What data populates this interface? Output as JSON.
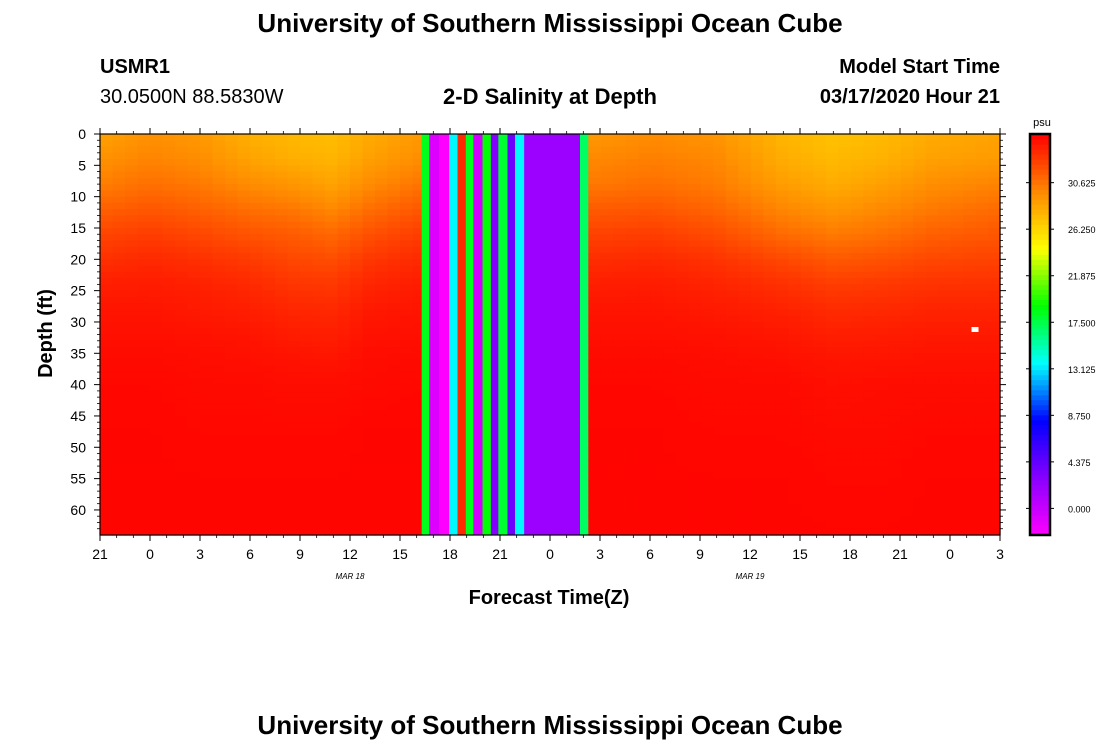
{
  "page": {
    "title_top": "University of Southern Mississippi Ocean Cube",
    "title_bottom": "University of Southern Mississippi Ocean Cube",
    "station_id": "USMR1",
    "station_coords": "30.0500N 88.5830W",
    "plot_title": "2-D Salinity at Depth",
    "model_label": "Model Start Time",
    "model_time": "03/17/2020 Hour 21"
  },
  "chart_data": {
    "type": "heatmap",
    "title": "2-D Salinity at Depth",
    "xlabel": "Forecast Time(Z)",
    "ylabel": "Depth (ft)",
    "x_range_hours": [
      0,
      54
    ],
    "y_range_ft": [
      0,
      64
    ],
    "x_tick_labels": [
      "21",
      "0",
      "3",
      "6",
      "9",
      "12",
      "15",
      "18",
      "21",
      "0",
      "3",
      "6",
      "9",
      "12",
      "15",
      "18",
      "21",
      "0",
      "3"
    ],
    "x_tick_hours": [
      0,
      3,
      6,
      9,
      12,
      15,
      18,
      21,
      24,
      27,
      30,
      33,
      36,
      39,
      42,
      45,
      48,
      51,
      54
    ],
    "date_labels": [
      {
        "text": "MAR 18",
        "hour": 15
      },
      {
        "text": "MAR 19",
        "hour": 39
      }
    ],
    "y_ticks": [
      0,
      5,
      10,
      15,
      20,
      25,
      30,
      35,
      40,
      45,
      50,
      55,
      60
    ],
    "colorbar": {
      "unit": "psu",
      "labels": [
        "30.625",
        "26.250",
        "21.875",
        "17.500",
        "13.125",
        "8.750",
        "4.375",
        "0.000"
      ],
      "label_values": [
        30.625,
        26.25,
        21.875,
        17.5,
        13.125,
        8.75,
        4.375,
        0.0
      ],
      "range": [
        -2.5,
        35.2
      ],
      "colors": [
        "#ff00ff",
        "#8800ff",
        "#0000ff",
        "#00ffff",
        "#00ff00",
        "#ffff00",
        "#ff8800",
        "#ff0000"
      ]
    },
    "profile_columns_hours": [
      0,
      3,
      6,
      9,
      11.5,
      14,
      16,
      19.3
    ],
    "profile_depths_ft": [
      0,
      4,
      8,
      12,
      16,
      20,
      24,
      28,
      32,
      36,
      40,
      48,
      56,
      64
    ],
    "profiles_right": [
      [
        29.0,
        29.8,
        30.4,
        31.6,
        32.6,
        33.4,
        34.0,
        34.4,
        34.6,
        34.8,
        34.9,
        35.0,
        35.0,
        35.0
      ],
      [
        29.6,
        30.2,
        30.8,
        31.8,
        32.8,
        33.6,
        34.1,
        34.4,
        34.6,
        34.8,
        34.9,
        35.0,
        35.0,
        35.0
      ],
      [
        29.2,
        29.8,
        30.3,
        31.2,
        32.2,
        33.2,
        33.8,
        34.2,
        34.5,
        34.7,
        34.8,
        34.9,
        35.0,
        35.0
      ],
      [
        27.8,
        28.2,
        28.9,
        29.9,
        31.0,
        32.4,
        33.3,
        33.9,
        34.3,
        34.6,
        34.8,
        34.9,
        35.0,
        35.0
      ],
      [
        27.2,
        27.6,
        28.2,
        29.2,
        30.4,
        31.7,
        32.8,
        33.5,
        34.0,
        34.4,
        34.6,
        34.8,
        34.9,
        35.0
      ],
      [
        27.6,
        28.0,
        28.8,
        29.8,
        30.8,
        32.0,
        33.0,
        33.6,
        34.1,
        34.4,
        34.7,
        34.8,
        34.9,
        35.0
      ],
      [
        28.2,
        28.7,
        29.5,
        30.4,
        31.4,
        32.4,
        33.2,
        33.8,
        34.2,
        34.5,
        34.7,
        34.9,
        35.0,
        35.0
      ],
      [
        28.6,
        29.0,
        30.0,
        31.0,
        31.8,
        32.6,
        33.3,
        33.8,
        34.2,
        34.5,
        34.7,
        34.9,
        35.0,
        35.0
      ]
    ],
    "profiles_left": [
      [
        28.6,
        29.4,
        30.2,
        31.4,
        32.5,
        33.3,
        34.0,
        34.4,
        34.6,
        34.8,
        34.9,
        35.0,
        35.0,
        35.0
      ],
      [
        29.4,
        30.0,
        30.8,
        31.8,
        32.8,
        33.6,
        34.1,
        34.4,
        34.6,
        34.8,
        34.9,
        35.0,
        35.0,
        35.0
      ],
      [
        29.0,
        29.6,
        30.4,
        31.4,
        32.4,
        33.3,
        33.9,
        34.2,
        34.5,
        34.7,
        34.8,
        34.9,
        35.0,
        35.0
      ],
      [
        28.0,
        28.6,
        29.6,
        30.8,
        31.9,
        32.9,
        33.6,
        34.0,
        34.4,
        34.6,
        34.8,
        34.9,
        35.0,
        35.0
      ],
      [
        27.6,
        28.1,
        29.2,
        30.5,
        31.6,
        32.4,
        33.1,
        33.7,
        34.1,
        34.5,
        34.7,
        34.9,
        35.0,
        35.0
      ],
      [
        27.4,
        27.8,
        28.6,
        29.8,
        31.1,
        32.2,
        33.0,
        33.6,
        34.0,
        34.4,
        34.7,
        34.9,
        35.0,
        35.0
      ],
      [
        28.2,
        28.7,
        29.6,
        30.8,
        32.0,
        33.0,
        33.7,
        34.2,
        34.5,
        34.7,
        34.8,
        35.0,
        35.0,
        35.0
      ],
      [
        29.0,
        29.6,
        30.6,
        31.8,
        32.8,
        33.6,
        34.1,
        34.4,
        34.6,
        34.8,
        34.9,
        35.0,
        35.0,
        35.0
      ]
    ],
    "gap_columns": [
      {
        "h0": 19.3,
        "h1": 19.75,
        "value": 18.5
      },
      {
        "h0": 19.75,
        "h1": 20.35,
        "value": -1.0
      },
      {
        "h0": 20.35,
        "h1": 20.95,
        "value": -2.4
      },
      {
        "h0": 20.95,
        "h1": 21.45,
        "value": 13.5
      },
      {
        "h0": 21.45,
        "h1": 21.95,
        "value": 33.5
      },
      {
        "h0": 21.95,
        "h1": 22.4,
        "value": 18.5
      },
      {
        "h0": 22.4,
        "h1": 22.95,
        "value": -0.5
      },
      {
        "h0": 22.95,
        "h1": 23.45,
        "value": 19.0
      },
      {
        "h0": 23.45,
        "h1": 23.9,
        "value": 3.0
      },
      {
        "h0": 23.9,
        "h1": 24.45,
        "value": 18.0
      },
      {
        "h0": 24.45,
        "h1": 24.9,
        "value": 4.0
      },
      {
        "h0": 24.9,
        "h1": 25.45,
        "value": 13.5
      },
      {
        "h0": 25.45,
        "h1": 28.8,
        "value": 2.0
      },
      {
        "h0": 28.8,
        "h1": 29.3,
        "value": 17.0
      }
    ],
    "marker": {
      "hour": 52.5,
      "depth_ft": 31.2,
      "color": "#ffffff"
    }
  }
}
